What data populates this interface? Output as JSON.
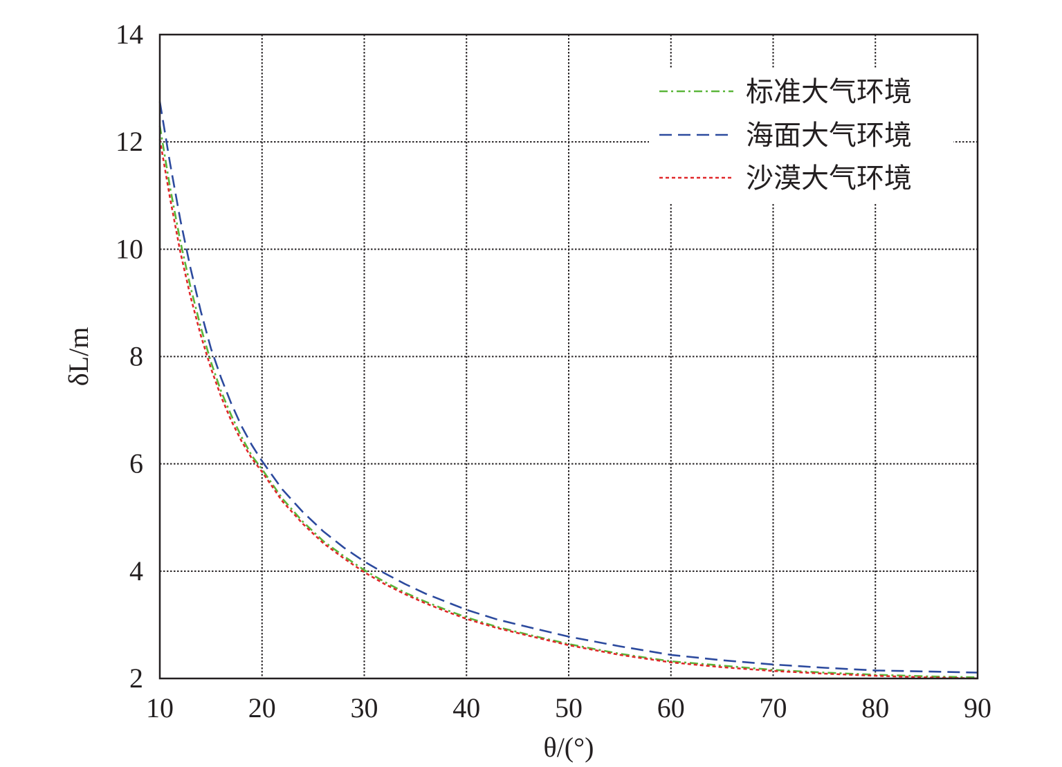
{
  "chart_data": {
    "type": "line",
    "title": "",
    "xlabel": "θ/(°)",
    "ylabel": "δL/m",
    "xlim": [
      10,
      90
    ],
    "ylim": [
      2,
      14
    ],
    "xticks": [
      10,
      20,
      30,
      40,
      50,
      60,
      70,
      80,
      90
    ],
    "yticks": [
      2,
      4,
      6,
      8,
      10,
      12,
      14
    ],
    "grid": true,
    "legend_position": "top-right",
    "x": [
      10,
      11,
      12,
      13,
      14,
      15,
      16,
      17,
      18,
      19,
      20,
      22,
      24,
      26,
      28,
      30,
      32,
      34,
      36,
      38,
      40,
      43,
      46,
      50,
      55,
      60,
      65,
      70,
      75,
      80,
      85,
      90
    ],
    "series": [
      {
        "name": "标准大气环境",
        "color": "#5ab63a",
        "dash": "dashdot",
        "values": [
          12.3,
          11.15,
          10.15,
          9.3,
          8.55,
          7.9,
          7.35,
          6.9,
          6.5,
          6.15,
          5.9,
          5.35,
          4.92,
          4.56,
          4.28,
          4.02,
          3.8,
          3.6,
          3.43,
          3.28,
          3.14,
          2.96,
          2.82,
          2.64,
          2.46,
          2.32,
          2.24,
          2.16,
          2.11,
          2.07,
          2.04,
          2.02
        ]
      },
      {
        "name": "海面大气环境",
        "color": "#2c4a9e",
        "dash": "dashed",
        "values": [
          12.75,
          11.6,
          10.55,
          9.65,
          8.85,
          8.15,
          7.6,
          7.12,
          6.7,
          6.35,
          6.05,
          5.52,
          5.1,
          4.74,
          4.44,
          4.18,
          3.96,
          3.76,
          3.58,
          3.43,
          3.28,
          3.1,
          2.96,
          2.78,
          2.6,
          2.44,
          2.34,
          2.26,
          2.2,
          2.15,
          2.13,
          2.11
        ]
      },
      {
        "name": "沙漠大气环境",
        "color": "#e0282a",
        "dash": "dotted",
        "values": [
          12.05,
          10.95,
          9.95,
          9.12,
          8.4,
          7.78,
          7.25,
          6.8,
          6.42,
          6.1,
          5.85,
          5.3,
          4.88,
          4.52,
          4.24,
          3.98,
          3.76,
          3.57,
          3.4,
          3.25,
          3.11,
          2.94,
          2.8,
          2.62,
          2.44,
          2.3,
          2.21,
          2.14,
          2.09,
          2.05,
          2.02,
          2.0
        ]
      }
    ]
  }
}
